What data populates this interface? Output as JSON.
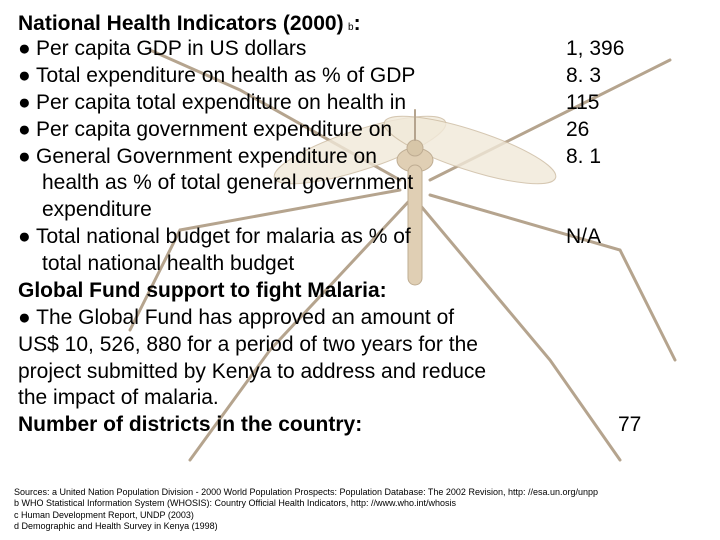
{
  "slide": {
    "background_color": "#ffffff",
    "text_color": "#000000",
    "base_fontsize_pt": 16
  },
  "heading": {
    "text": "National Health Indicators (2000)",
    "footmark": "b",
    "suffix": ":"
  },
  "indicators": [
    {
      "label": "Per capita GDP in US dollars",
      "value": "1, 396"
    },
    {
      "label": "Total expenditure on health as % of GDP",
      "value": "8. 3"
    },
    {
      "label": "Per capita total expenditure on health in",
      "value": "115"
    },
    {
      "label": "Per capita government expenditure on",
      "value": "26"
    },
    {
      "label": "General Government expenditure on",
      "value": "8. 1",
      "cont": [
        "health as % of total general government",
        "expenditure"
      ]
    },
    {
      "label": "Total national budget for malaria as % of",
      "value": "N/A",
      "cont": [
        "total national health budget"
      ]
    }
  ],
  "global_fund": {
    "heading": "Global Fund support to fight Malaria:",
    "body_lines": [
      "● The Global Fund has approved an amount of",
      "US$ 10, 526, 880 for a period of two years for the",
      "project submitted by Kenya to address and reduce",
      "the impact of malaria."
    ]
  },
  "districts": {
    "label": "Number of districts in the country:",
    "value": "77"
  },
  "sources": [
    "Sources: a United Nation Population Division - 2000 World Population Prospects: Population Database: The 2002 Revision, http: //esa.un.org/unpp",
    "b WHO Statistical Information System (WHOSIS): Country Official Health Indicators, http: //www.who.int/whosis",
    "c Human Development Report, UNDP (2003)",
    "d Demographic and Health Survey in Kenya (1998)"
  ],
  "mosquito": {
    "body_color": "#c8a878",
    "body_stroke": "#8a6a3a",
    "leg_color": "#7a5a32",
    "wing_fill": "#e4d6b8",
    "wing_stroke": "#a08050"
  }
}
